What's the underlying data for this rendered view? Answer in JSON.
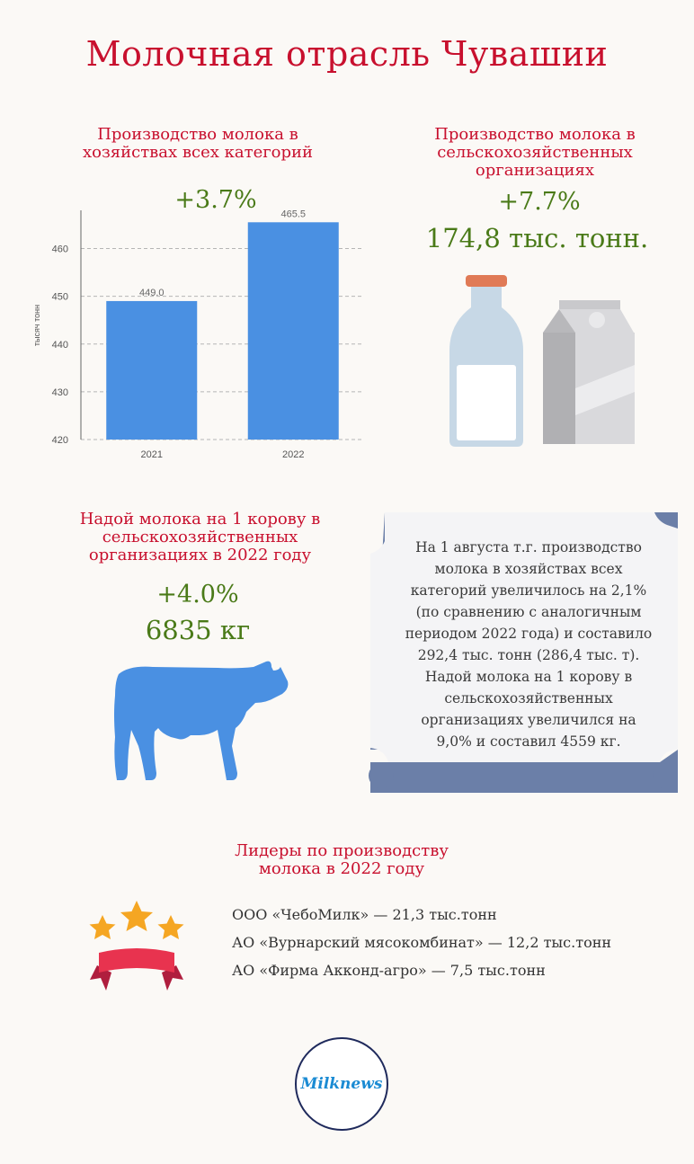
{
  "title": "Молочная отрасль Чувашии",
  "section1": {
    "heading_line1": "Производство молока в",
    "heading_line2": "хозяйствах всех категорий",
    "change": "+3.7%"
  },
  "chart_data": {
    "type": "bar",
    "categories": [
      "2021",
      "2022"
    ],
    "values": [
      449.0,
      465.5
    ],
    "value_labels": [
      "449.0",
      "465.5"
    ],
    "ylabel": "тысяч тонн",
    "ylim": [
      420,
      468
    ],
    "yticks": [
      "420",
      "430",
      "440",
      "450",
      "460"
    ],
    "grid": "dashed horizontal",
    "bar_color": "#4a90e2"
  },
  "section2": {
    "heading_line1": "Производство молока в",
    "heading_line2": "сельскохозяйственных",
    "heading_line3": "организациях",
    "change": "+7.7%",
    "amount": "174,8 тыс. тонн."
  },
  "section3": {
    "heading_line1": "Надой молока на 1 корову в",
    "heading_line2": "сельскохозяйственных",
    "heading_line3": "организациях в 2022 году",
    "change": "+4.0%",
    "amount": "6835 кг"
  },
  "panel": {
    "lines": [
      "На 1 августа т.г. производство",
      "молока в хозяйствах всех",
      "категорий увеличилось на 2,1%",
      "(по сравнению с аналогичным",
      "периодом 2022 года) и составило",
      "292,4 тыс. тонн (286,4 тыс. т).",
      "Надой молока на 1 корову в",
      "сельскохозяйственных",
      "организациях увеличился на",
      "9,0% и составил 4559 кг."
    ]
  },
  "leaders": {
    "heading_line1": "Лидеры по производству",
    "heading_line2": "молока в 2022 году",
    "items": [
      "ООО «ЧебоМилк» — 21,3 тыс.тонн",
      "АО «Вурнарский мясокомбинат» — 12,2 тыс.тонн",
      "АО «Фирма Акконд-агро» — 7,5 тыс.тонн"
    ]
  },
  "logo": {
    "text": "Milknews"
  },
  "colors": {
    "accent_red": "#c8102e",
    "green": "#4a7a18",
    "bar_blue": "#4a90e2",
    "panel_navy": "#6b7fa8"
  },
  "icons": [
    "milk-bottle-icon",
    "milk-carton-icon",
    "cow-icon",
    "stars-ribbon-icon"
  ]
}
